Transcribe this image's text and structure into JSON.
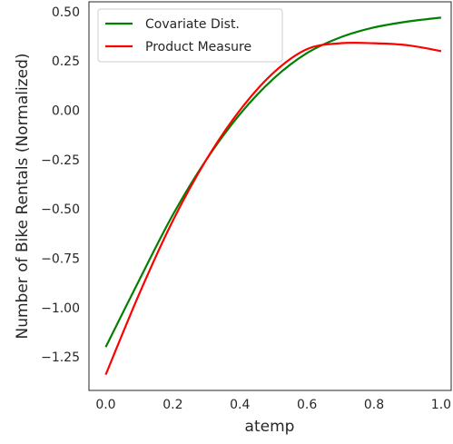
{
  "chart_data": {
    "type": "line",
    "title": "",
    "xlabel": "atemp",
    "ylabel": "Number of Bike Rentals (Normalized)",
    "xlim": [
      -0.05,
      1.03
    ],
    "ylim": [
      -1.42,
      0.55
    ],
    "xticks": [
      0.0,
      0.2,
      0.4,
      0.6,
      0.8,
      1.0
    ],
    "xtick_labels": [
      "0.0",
      "0.2",
      "0.4",
      "0.6",
      "0.8",
      "1.0"
    ],
    "yticks": [
      0.5,
      0.25,
      0.0,
      -0.25,
      -0.5,
      -0.75,
      -1.0,
      -1.25
    ],
    "ytick_labels": [
      "0.50",
      "0.25",
      "0.00",
      "−0.25",
      "−0.50",
      "−0.75",
      "−1.00",
      "−1.25"
    ],
    "grid": false,
    "legend_position": "top-left",
    "x": [
      0.0,
      0.1,
      0.2,
      0.3,
      0.4,
      0.5,
      0.6,
      0.7,
      0.8,
      0.9,
      1.0
    ],
    "series": [
      {
        "name": "Covariate Dist.",
        "color": "#008000",
        "values": [
          -1.2,
          -0.86,
          -0.53,
          -0.25,
          -0.02,
          0.16,
          0.29,
          0.37,
          0.42,
          0.45,
          0.47
        ]
      },
      {
        "name": "Product Measure",
        "color": "#ff0000",
        "values": [
          -1.34,
          -0.93,
          -0.56,
          -0.25,
          0.0,
          0.19,
          0.31,
          0.34,
          0.34,
          0.33,
          0.3
        ]
      }
    ]
  }
}
